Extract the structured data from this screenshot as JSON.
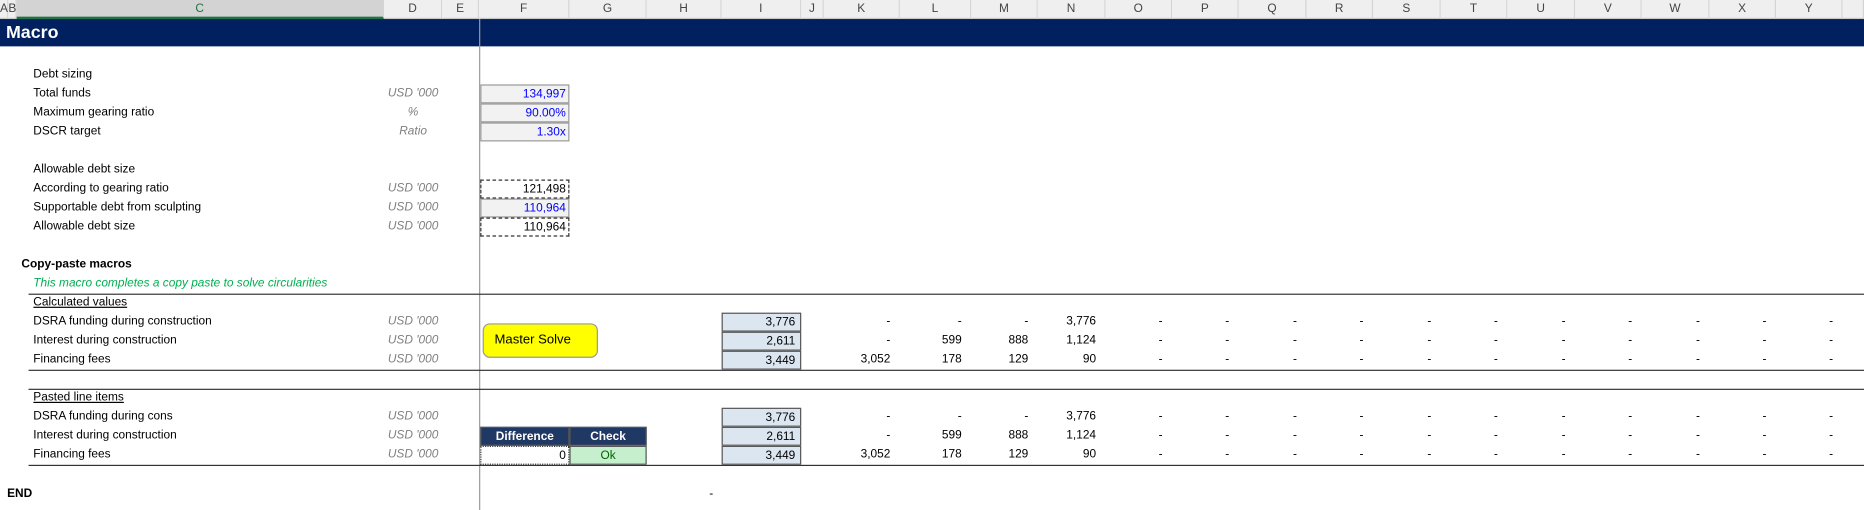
{
  "columns": [
    "A",
    "B",
    "C",
    "D",
    "E",
    "F",
    "G",
    "H",
    "I",
    "J",
    "K",
    "L",
    "M",
    "N",
    "O",
    "P",
    "Q",
    "R",
    "S",
    "T",
    "U",
    "V",
    "W",
    "X",
    "Y"
  ],
  "sheet_title": "Macro",
  "debt_sizing": {
    "heading": "Debt sizing",
    "rows": [
      {
        "label": "Total funds",
        "unit": "USD '000",
        "value": "134,997"
      },
      {
        "label": "Maximum gearing ratio",
        "unit": "%",
        "value": "90.00%"
      },
      {
        "label": "DSCR target",
        "unit": "Ratio",
        "value": "1.30x"
      }
    ]
  },
  "allowable": {
    "heading": "Allowable debt size",
    "rows": [
      {
        "label": "According to gearing ratio",
        "unit": "USD '000",
        "value": "121,498"
      },
      {
        "label": "Supportable debt from sculpting",
        "unit": "USD '000",
        "value": "110,964"
      },
      {
        "label": "Allowable debt size",
        "unit": "USD '000",
        "value": "110,964"
      }
    ]
  },
  "copy_paste": {
    "heading": "Copy-paste macros",
    "note": "This macro completes a copy paste to solve circularities",
    "button": "Master Solve"
  },
  "calculated": {
    "heading": "Calculated values",
    "rows": [
      {
        "label": "DSRA funding during construction",
        "unit": "USD '000",
        "total": "3,776",
        "periods": [
          "-",
          "-",
          "-",
          "3,776",
          "-",
          "-",
          "-",
          "-",
          "-",
          "-",
          "-",
          "-",
          "-",
          "-",
          "-"
        ]
      },
      {
        "label": "Interest during construction",
        "unit": "USD '000",
        "total": "2,611",
        "periods": [
          "-",
          "599",
          "888",
          "1,124",
          "-",
          "-",
          "-",
          "-",
          "-",
          "-",
          "-",
          "-",
          "-",
          "-",
          "-"
        ]
      },
      {
        "label": "Financing fees",
        "unit": "USD '000",
        "total": "3,449",
        "periods": [
          "3,052",
          "178",
          "129",
          "90",
          "-",
          "-",
          "-",
          "-",
          "-",
          "-",
          "-",
          "-",
          "-",
          "-",
          "-"
        ]
      }
    ]
  },
  "pasted": {
    "heading": "Pasted line items",
    "rows": [
      {
        "label": "DSRA funding during cons",
        "unit": "USD '000",
        "total": "3,776",
        "periods": [
          "-",
          "-",
          "-",
          "3,776",
          "-",
          "-",
          "-",
          "-",
          "-",
          "-",
          "-",
          "-",
          "-",
          "-",
          "-"
        ]
      },
      {
        "label": "Interest during construction",
        "unit": "USD '000",
        "total": "2,611",
        "periods": [
          "-",
          "599",
          "888",
          "1,124",
          "-",
          "-",
          "-",
          "-",
          "-",
          "-",
          "-",
          "-",
          "-",
          "-",
          "-"
        ]
      },
      {
        "label": "Financing fees",
        "unit": "USD '000",
        "total": "3,449",
        "periods": [
          "3,052",
          "178",
          "129",
          "90",
          "-",
          "-",
          "-",
          "-",
          "-",
          "-",
          "-",
          "-",
          "-",
          "-",
          "-"
        ]
      }
    ]
  },
  "check": {
    "headers": [
      "Difference",
      "Check"
    ],
    "difference": "0",
    "status": "Ok"
  },
  "end": "END",
  "end_value": "-"
}
